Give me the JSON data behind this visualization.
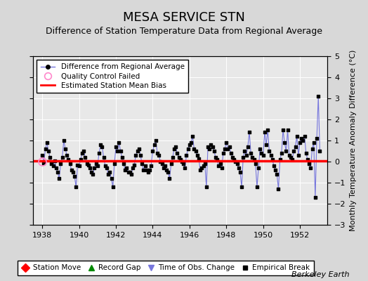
{
  "title": "MESA SERVICE STN",
  "subtitle": "Difference of Station Temperature Data from Regional Average",
  "ylabel": "Monthly Temperature Anomaly Difference (°C)",
  "credit": "Berkeley Earth",
  "xlim": [
    1937.5,
    1953.5
  ],
  "ylim": [
    -3,
    5
  ],
  "yticks": [
    -3,
    -2,
    -1,
    0,
    1,
    2,
    3,
    4,
    5
  ],
  "xticks": [
    1938,
    1940,
    1942,
    1944,
    1946,
    1948,
    1950,
    1952
  ],
  "bias": 0.05,
  "background_color": "#d8d8d8",
  "plot_background": "#e8e8e8",
  "line_color": "#7777dd",
  "marker_color": "#000000",
  "bias_color": "#ff0000",
  "data": [
    [
      1938.0,
      0.3
    ],
    [
      1938.083,
      -0.05
    ],
    [
      1938.167,
      0.6
    ],
    [
      1938.25,
      0.9
    ],
    [
      1938.333,
      0.5
    ],
    [
      1938.417,
      0.2
    ],
    [
      1938.5,
      -0.1
    ],
    [
      1938.583,
      -0.2
    ],
    [
      1938.667,
      0.05
    ],
    [
      1938.75,
      -0.3
    ],
    [
      1938.833,
      -0.5
    ],
    [
      1938.917,
      -0.8
    ],
    [
      1939.0,
      -0.1
    ],
    [
      1939.083,
      0.2
    ],
    [
      1939.167,
      1.0
    ],
    [
      1939.25,
      0.6
    ],
    [
      1939.333,
      0.3
    ],
    [
      1939.417,
      0.1
    ],
    [
      1939.5,
      -0.1
    ],
    [
      1939.583,
      -0.4
    ],
    [
      1939.667,
      -0.5
    ],
    [
      1939.75,
      -0.7
    ],
    [
      1939.833,
      -1.2
    ],
    [
      1939.917,
      -0.15
    ],
    [
      1940.0,
      -0.2
    ],
    [
      1940.083,
      0.1
    ],
    [
      1940.167,
      0.4
    ],
    [
      1940.25,
      0.5
    ],
    [
      1940.333,
      0.2
    ],
    [
      1940.417,
      -0.1
    ],
    [
      1940.5,
      -0.15
    ],
    [
      1940.583,
      -0.3
    ],
    [
      1940.667,
      -0.5
    ],
    [
      1940.75,
      -0.6
    ],
    [
      1940.833,
      -0.3
    ],
    [
      1940.917,
      -0.1
    ],
    [
      1941.0,
      -0.2
    ],
    [
      1941.083,
      0.4
    ],
    [
      1941.167,
      0.8
    ],
    [
      1941.25,
      0.7
    ],
    [
      1941.333,
      0.2
    ],
    [
      1941.417,
      -0.2
    ],
    [
      1941.5,
      -0.3
    ],
    [
      1941.583,
      -0.6
    ],
    [
      1941.667,
      -0.5
    ],
    [
      1941.75,
      -0.8
    ],
    [
      1941.833,
      -1.2
    ],
    [
      1941.917,
      -0.1
    ],
    [
      1942.0,
      0.7
    ],
    [
      1942.083,
      0.5
    ],
    [
      1942.167,
      0.9
    ],
    [
      1942.25,
      0.5
    ],
    [
      1942.333,
      0.2
    ],
    [
      1942.417,
      -0.1
    ],
    [
      1942.5,
      -0.4
    ],
    [
      1942.583,
      -0.3
    ],
    [
      1942.667,
      -0.5
    ],
    [
      1942.75,
      -0.5
    ],
    [
      1942.833,
      -0.6
    ],
    [
      1942.917,
      -0.3
    ],
    [
      1943.0,
      -0.15
    ],
    [
      1943.083,
      0.3
    ],
    [
      1943.167,
      0.5
    ],
    [
      1943.25,
      0.6
    ],
    [
      1943.333,
      0.3
    ],
    [
      1943.417,
      -0.1
    ],
    [
      1943.5,
      -0.4
    ],
    [
      1943.583,
      -0.2
    ],
    [
      1943.667,
      -0.4
    ],
    [
      1943.75,
      -0.5
    ],
    [
      1943.833,
      -0.4
    ],
    [
      1943.917,
      -0.2
    ],
    [
      1944.0,
      0.5
    ],
    [
      1944.083,
      0.8
    ],
    [
      1944.167,
      1.0
    ],
    [
      1944.25,
      0.4
    ],
    [
      1944.333,
      0.3
    ],
    [
      1944.417,
      0.0
    ],
    [
      1944.5,
      -0.1
    ],
    [
      1944.583,
      -0.3
    ],
    [
      1944.667,
      -0.2
    ],
    [
      1944.75,
      -0.4
    ],
    [
      1944.833,
      -0.5
    ],
    [
      1944.917,
      -0.8
    ],
    [
      1945.0,
      -0.1
    ],
    [
      1945.083,
      0.2
    ],
    [
      1945.167,
      0.6
    ],
    [
      1945.25,
      0.7
    ],
    [
      1945.333,
      0.4
    ],
    [
      1945.417,
      0.2
    ],
    [
      1945.5,
      0.1
    ],
    [
      1945.583,
      0.0
    ],
    [
      1945.667,
      -0.1
    ],
    [
      1945.75,
      -0.3
    ],
    [
      1945.833,
      0.3
    ],
    [
      1945.917,
      0.6
    ],
    [
      1946.0,
      0.8
    ],
    [
      1946.083,
      0.9
    ],
    [
      1946.167,
      1.2
    ],
    [
      1946.25,
      0.6
    ],
    [
      1946.333,
      0.5
    ],
    [
      1946.417,
      0.3
    ],
    [
      1946.5,
      0.15
    ],
    [
      1946.583,
      -0.4
    ],
    [
      1946.667,
      -0.3
    ],
    [
      1946.75,
      -0.2
    ],
    [
      1946.833,
      -0.1
    ],
    [
      1946.917,
      -1.2
    ],
    [
      1947.0,
      0.7
    ],
    [
      1947.083,
      0.6
    ],
    [
      1947.167,
      0.8
    ],
    [
      1947.25,
      0.7
    ],
    [
      1947.333,
      0.5
    ],
    [
      1947.417,
      0.2
    ],
    [
      1947.5,
      0.1
    ],
    [
      1947.583,
      -0.2
    ],
    [
      1947.667,
      -0.1
    ],
    [
      1947.75,
      -0.3
    ],
    [
      1947.833,
      0.4
    ],
    [
      1947.917,
      0.6
    ],
    [
      1948.0,
      0.9
    ],
    [
      1948.083,
      0.6
    ],
    [
      1948.167,
      0.7
    ],
    [
      1948.25,
      0.4
    ],
    [
      1948.333,
      0.2
    ],
    [
      1948.417,
      0.1
    ],
    [
      1948.5,
      0.0
    ],
    [
      1948.583,
      -0.1
    ],
    [
      1948.667,
      -0.3
    ],
    [
      1948.75,
      -0.5
    ],
    [
      1948.833,
      -1.2
    ],
    [
      1948.917,
      0.2
    ],
    [
      1949.0,
      0.5
    ],
    [
      1949.083,
      0.3
    ],
    [
      1949.167,
      0.7
    ],
    [
      1949.25,
      1.4
    ],
    [
      1949.333,
      0.4
    ],
    [
      1949.417,
      0.2
    ],
    [
      1949.5,
      0.1
    ],
    [
      1949.583,
      -0.1
    ],
    [
      1949.667,
      -1.2
    ],
    [
      1949.75,
      -0.3
    ],
    [
      1949.833,
      0.6
    ],
    [
      1949.917,
      0.4
    ],
    [
      1950.0,
      0.3
    ],
    [
      1950.083,
      1.4
    ],
    [
      1950.167,
      0.8
    ],
    [
      1950.25,
      1.5
    ],
    [
      1950.333,
      0.5
    ],
    [
      1950.417,
      0.3
    ],
    [
      1950.5,
      0.1
    ],
    [
      1950.583,
      -0.2
    ],
    [
      1950.667,
      -0.4
    ],
    [
      1950.75,
      -0.6
    ],
    [
      1950.833,
      -1.3
    ],
    [
      1950.917,
      0.1
    ],
    [
      1951.0,
      0.4
    ],
    [
      1951.083,
      1.5
    ],
    [
      1951.167,
      0.9
    ],
    [
      1951.25,
      0.5
    ],
    [
      1951.333,
      1.5
    ],
    [
      1951.417,
      0.3
    ],
    [
      1951.5,
      0.2
    ],
    [
      1951.583,
      0.1
    ],
    [
      1951.667,
      0.5
    ],
    [
      1951.75,
      0.7
    ],
    [
      1951.833,
      1.2
    ],
    [
      1951.917,
      0.3
    ],
    [
      1952.0,
      0.9
    ],
    [
      1952.083,
      1.1
    ],
    [
      1952.167,
      1.0
    ],
    [
      1952.25,
      1.2
    ],
    [
      1952.333,
      0.4
    ],
    [
      1952.417,
      0.1
    ],
    [
      1952.5,
      -0.1
    ],
    [
      1952.583,
      -0.3
    ],
    [
      1952.667,
      0.6
    ],
    [
      1952.75,
      0.9
    ],
    [
      1952.833,
      -1.7
    ],
    [
      1952.917,
      1.1
    ],
    [
      1953.0,
      3.1
    ],
    [
      1953.083,
      0.5
    ]
  ],
  "qc_failed": [
    [
      1938.0,
      0.0
    ]
  ],
  "title_fontsize": 13,
  "subtitle_fontsize": 9,
  "tick_fontsize": 8,
  "label_fontsize": 8
}
